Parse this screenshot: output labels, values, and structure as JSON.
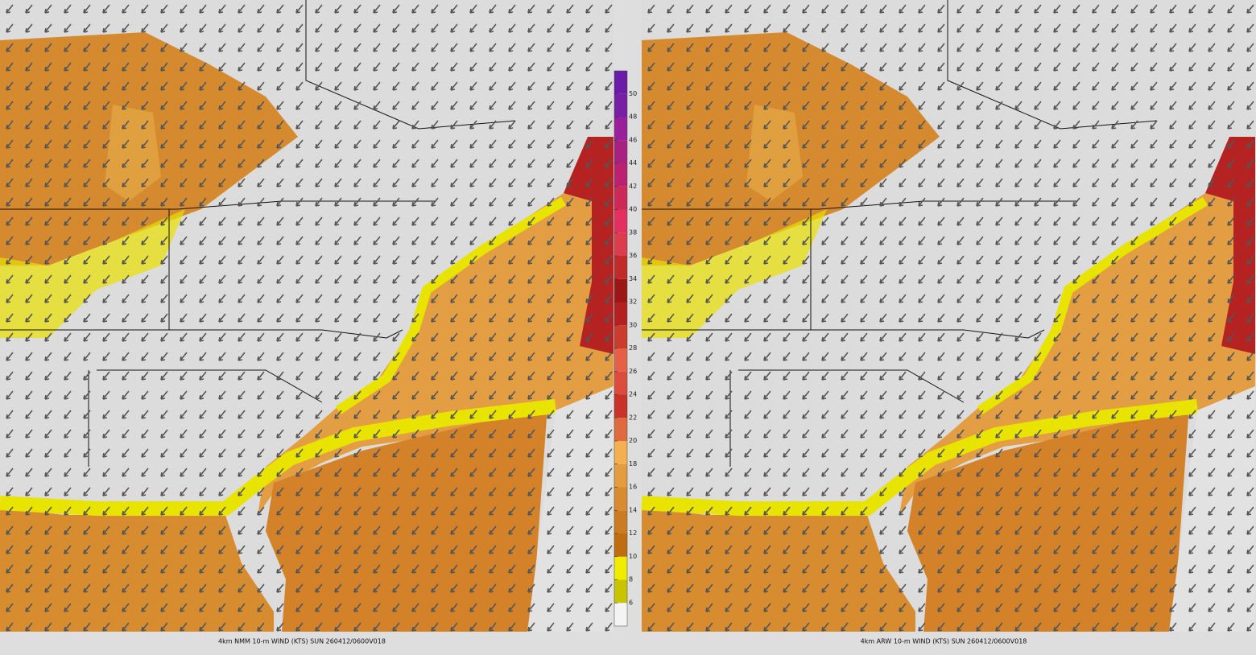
{
  "panels": [
    {
      "caption": "4km NMM 10-m WIND (KTS) SUN 260412/0600V018"
    },
    {
      "caption": "4km ARW 10-m WIND (KTS) SUN 260412/0600V018"
    }
  ],
  "colorbar": {
    "levels": [
      6,
      8,
      10,
      12,
      14,
      16,
      18,
      20,
      22,
      24,
      26,
      28,
      30,
      32,
      34,
      36,
      38,
      40,
      42,
      44,
      46,
      48,
      50
    ],
    "lim": [
      4,
      52
    ],
    "colors": [
      "#f4f4f4",
      "#c8c400",
      "#f0ec00",
      "#c06c10",
      "#cc7c20",
      "#d88c30",
      "#e49c40",
      "#f4b050",
      "#e06a40",
      "#c83228",
      "#dc4c3c",
      "#e66048",
      "#cc3c2c",
      "#b42020",
      "#9c1616",
      "#c02a2a",
      "#dc3c4c",
      "#e43060",
      "#cc2858",
      "#bc2070",
      "#a82080",
      "#98209a",
      "#7820a4",
      "#6a1ca8"
    ]
  }
}
